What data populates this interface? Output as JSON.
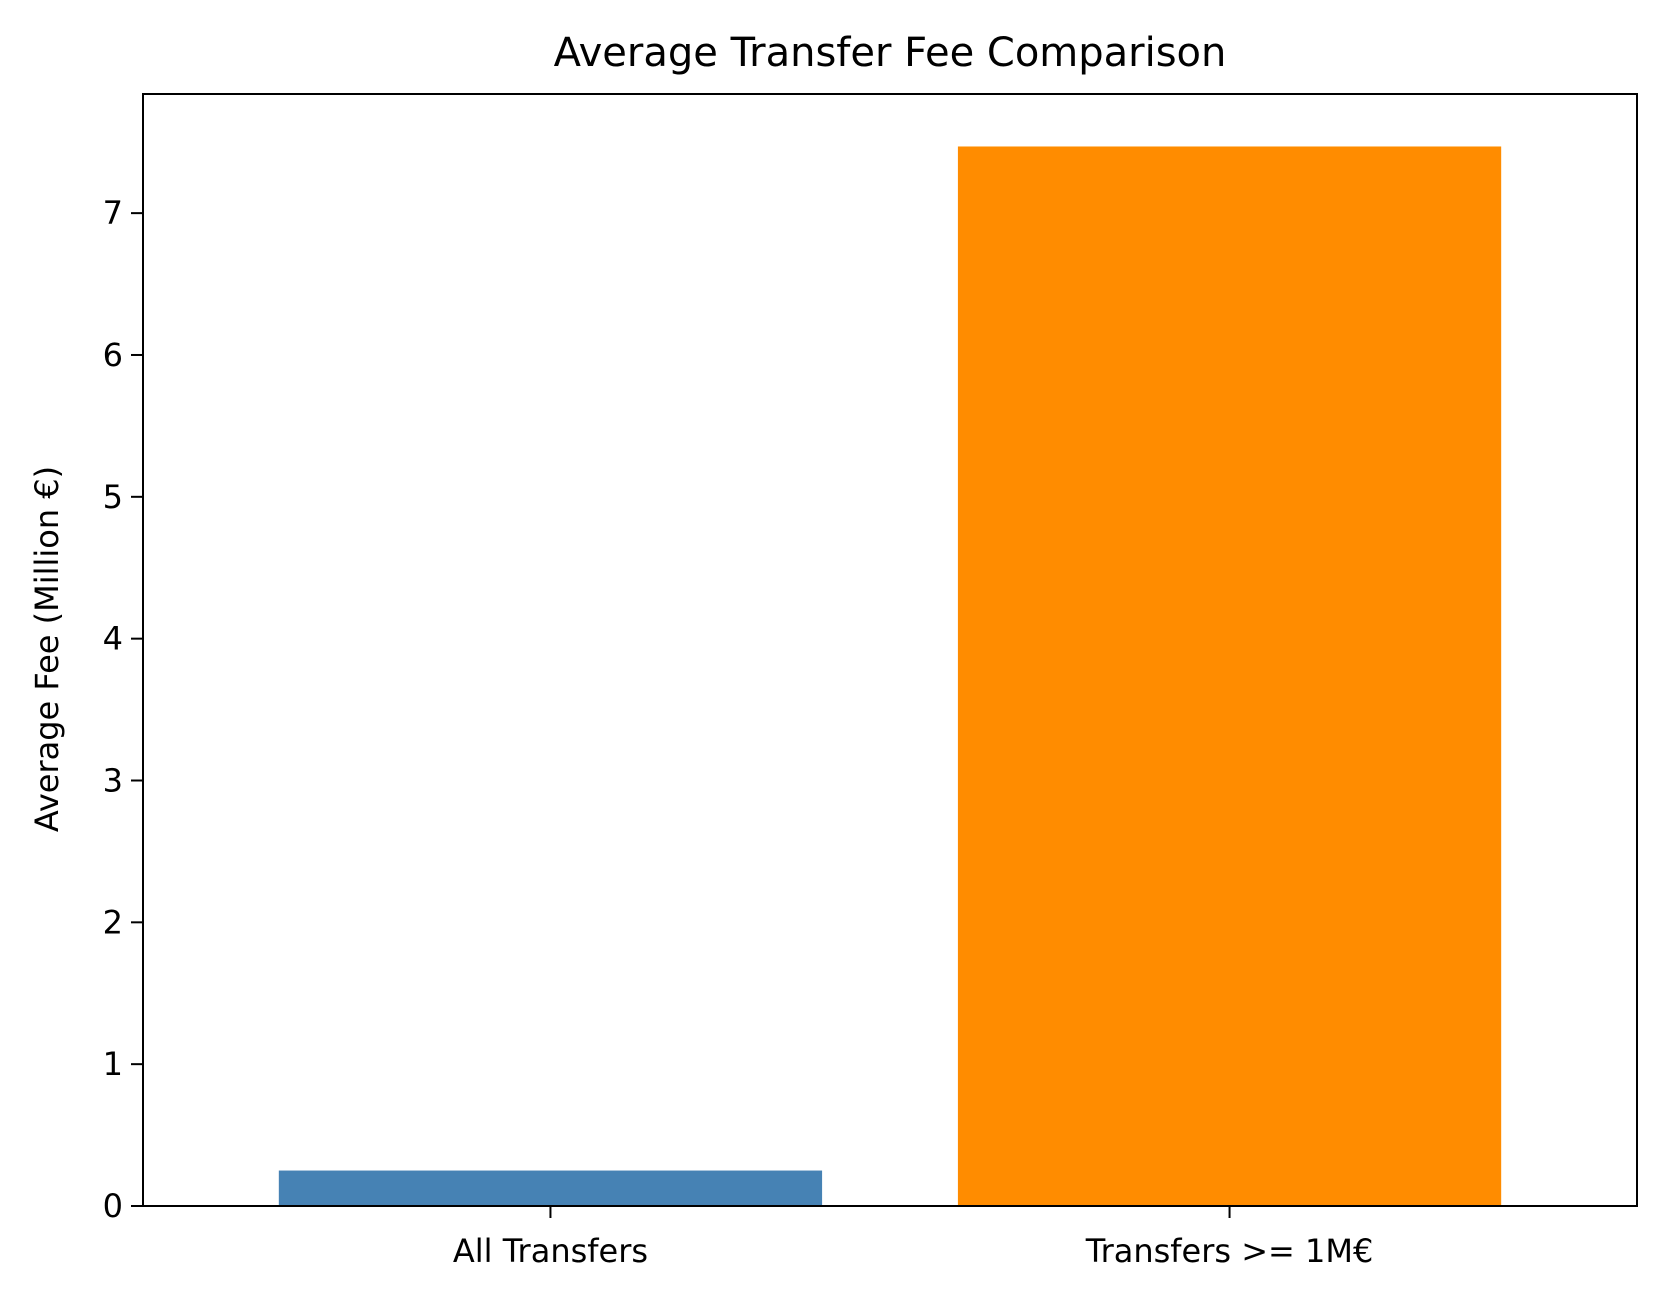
{
  "chart_data": {
    "type": "bar",
    "title": "Average Transfer Fee Comparison",
    "xlabel": "",
    "ylabel": "Average Fee (Million €)",
    "categories": [
      "All Transfers",
      "Transfers >= 1M€"
    ],
    "values": [
      0.25,
      7.47
    ],
    "colors": [
      "#4682b4",
      "#ff8c00"
    ],
    "ylim": [
      0,
      7.84
    ],
    "yticks": [
      0,
      1,
      2,
      3,
      4,
      5,
      6,
      7
    ],
    "grid": false,
    "legend": "none"
  }
}
